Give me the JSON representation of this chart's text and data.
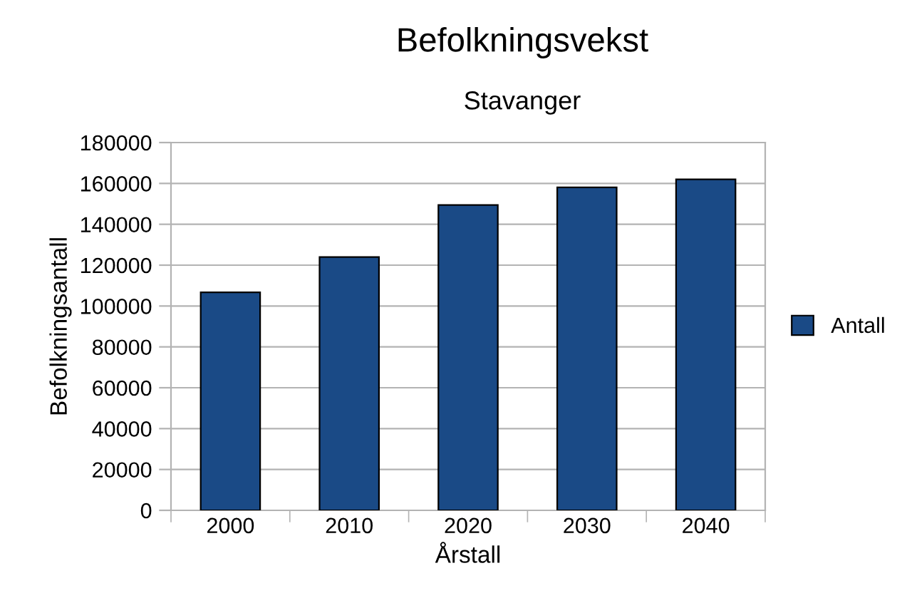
{
  "chart_data": {
    "type": "bar",
    "title": "Befolkningsvekst",
    "subtitle": "Stavanger",
    "xlabel": "Årstall",
    "ylabel": "Befolkningsantall",
    "categories": [
      "2000",
      "2010",
      "2020",
      "2030",
      "2040"
    ],
    "series": [
      {
        "name": "Antall",
        "color": "#1a4a86",
        "values": [
          106700,
          124000,
          149400,
          158100,
          162000
        ]
      }
    ],
    "ylim": [
      0,
      180000
    ],
    "yticks": [
      0,
      20000,
      40000,
      60000,
      80000,
      100000,
      120000,
      140000,
      160000,
      180000
    ],
    "grid": "y",
    "legend": "right"
  }
}
